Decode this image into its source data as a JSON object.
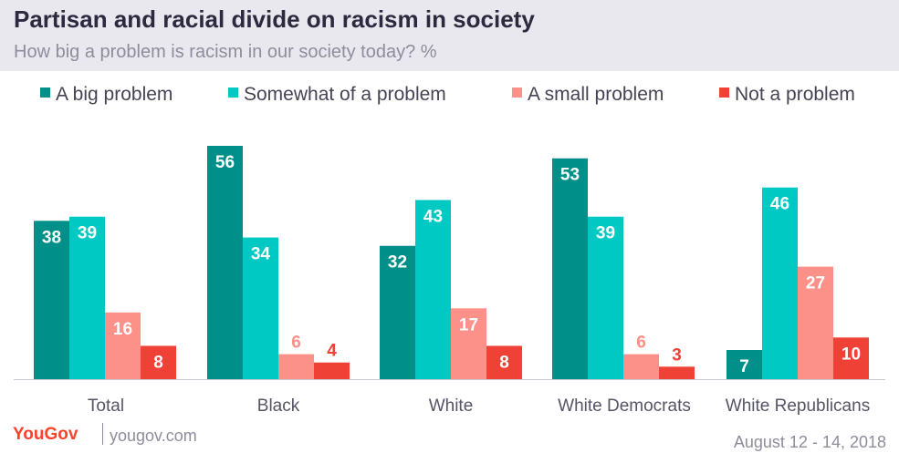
{
  "header": {
    "title": "Partisan and racial divide on racism in society",
    "subtitle": "How big a problem is racism in our society today? %"
  },
  "chart_data": {
    "type": "bar",
    "title": "Partisan and racial divide on racism in society",
    "subtitle": "How big a problem is racism in our society today? %",
    "categories": [
      "Total",
      "Black",
      "White",
      "White Democrats",
      "White Republicans"
    ],
    "series": [
      {
        "name": "A big problem",
        "color": "#009089",
        "values": [
          38,
          56,
          32,
          53,
          7
        ]
      },
      {
        "name": "Somewhat of a problem",
        "color": "#00c8c3",
        "values": [
          39,
          34,
          43,
          39,
          46
        ]
      },
      {
        "name": "A small problem",
        "color": "#fb9188",
        "values": [
          16,
          6,
          17,
          6,
          27
        ]
      },
      {
        "name": "Not a problem",
        "color": "#ef4136",
        "values": [
          8,
          4,
          8,
          3,
          10
        ]
      }
    ],
    "ylim": [
      0,
      56
    ],
    "grid": false,
    "legend_position": "top",
    "xlabel": "",
    "ylabel": ""
  },
  "footer": {
    "brand": "YouGov",
    "url": "yougov.com",
    "date": "August 12 - 14, 2018"
  }
}
